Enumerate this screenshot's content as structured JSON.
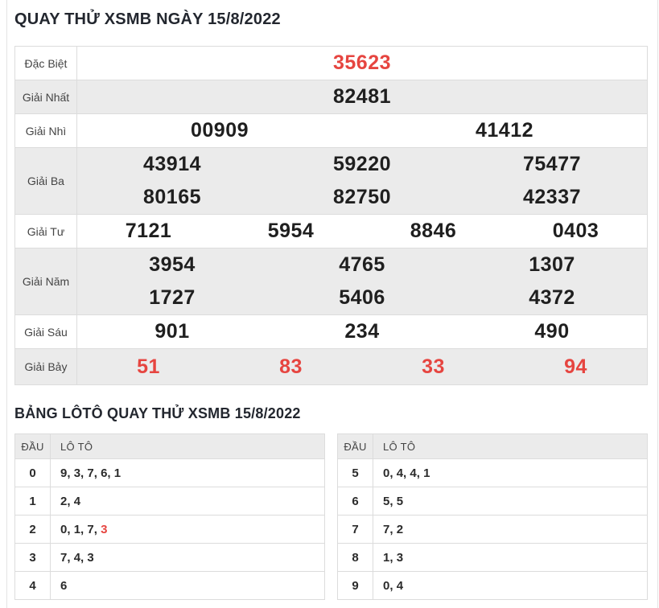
{
  "header": {
    "title": "QUAY THỬ XSMB NGÀY 15/8/2022"
  },
  "loto_section": {
    "title": "BẢNG LÔTÔ QUAY THỬ XSMB 15/8/2022"
  },
  "colors": {
    "accent_red": "#e64540",
    "row_alt_bg": "#ebebeb",
    "border": "#dcdcdc",
    "heading_text": "#23272f",
    "number_text": "#1f1f1f",
    "label_text": "#444444"
  },
  "results_table": {
    "rows": [
      {
        "label": "Đặc Biệt",
        "red": true,
        "lines": [
          [
            "35623"
          ]
        ]
      },
      {
        "label": "Giải Nhất",
        "red": false,
        "lines": [
          [
            "82481"
          ]
        ]
      },
      {
        "label": "Giải Nhì",
        "red": false,
        "lines": [
          [
            "00909",
            "41412"
          ]
        ]
      },
      {
        "label": "Giải Ba",
        "red": false,
        "lines": [
          [
            "43914",
            "59220",
            "75477"
          ],
          [
            "80165",
            "82750",
            "42337"
          ]
        ]
      },
      {
        "label": "Giải Tư",
        "red": false,
        "lines": [
          [
            "7121",
            "5954",
            "8846",
            "0403"
          ]
        ]
      },
      {
        "label": "Giải Năm",
        "red": false,
        "lines": [
          [
            "3954",
            "4765",
            "1307"
          ],
          [
            "1727",
            "5406",
            "4372"
          ]
        ]
      },
      {
        "label": "Giải Sáu",
        "red": false,
        "lines": [
          [
            "901",
            "234",
            "490"
          ]
        ]
      },
      {
        "label": "Giải Bảy",
        "red": true,
        "lines": [
          [
            "51",
            "83",
            "33",
            "94"
          ]
        ]
      }
    ]
  },
  "loto_tables": [
    {
      "headers": {
        "dau": "ĐẦU",
        "loto": "LÔ TÔ"
      },
      "rows": [
        {
          "dau": "0",
          "values": [
            "9",
            "3",
            "7",
            "6",
            "1"
          ],
          "red_indices": []
        },
        {
          "dau": "1",
          "values": [
            "2",
            "4"
          ],
          "red_indices": []
        },
        {
          "dau": "2",
          "values": [
            "0",
            "1",
            "7",
            "3"
          ],
          "red_indices": [
            3
          ]
        },
        {
          "dau": "3",
          "values": [
            "7",
            "4",
            "3"
          ],
          "red_indices": []
        },
        {
          "dau": "4",
          "values": [
            "6"
          ],
          "red_indices": []
        }
      ]
    },
    {
      "headers": {
        "dau": "ĐẦU",
        "loto": "LÔ TÔ"
      },
      "rows": [
        {
          "dau": "5",
          "values": [
            "0",
            "4",
            "4",
            "1"
          ],
          "red_indices": []
        },
        {
          "dau": "6",
          "values": [
            "5",
            "5"
          ],
          "red_indices": []
        },
        {
          "dau": "7",
          "values": [
            "7",
            "2"
          ],
          "red_indices": []
        },
        {
          "dau": "8",
          "values": [
            "1",
            "3"
          ],
          "red_indices": []
        },
        {
          "dau": "9",
          "values": [
            "0",
            "4"
          ],
          "red_indices": []
        }
      ]
    }
  ]
}
